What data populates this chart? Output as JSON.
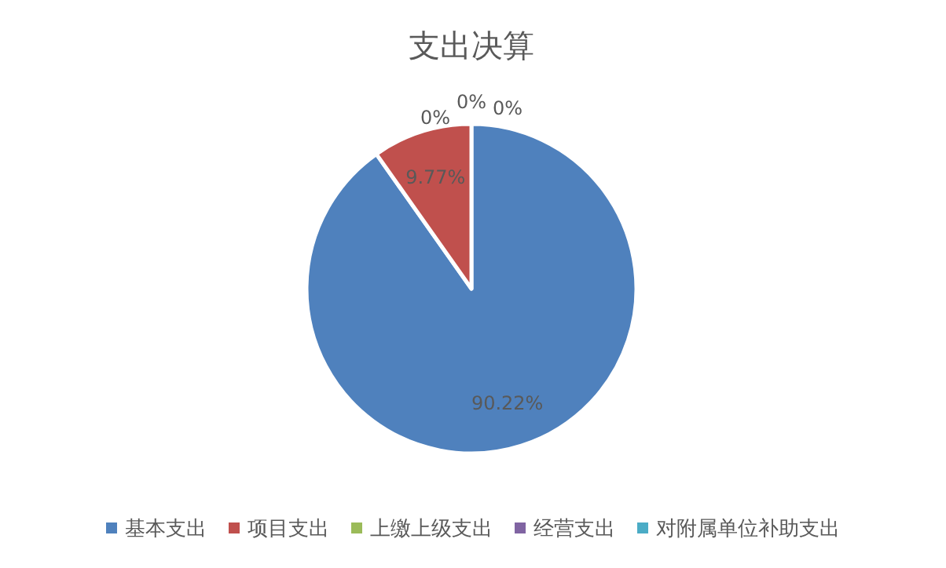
{
  "chart_data": {
    "type": "pie",
    "title": "支出决算",
    "categories": [
      "基本支出",
      "项目支出",
      "上缴上级支出",
      "经营支出",
      "对附属单位补助支出"
    ],
    "values": [
      90.22,
      9.77,
      0,
      0,
      0
    ],
    "colors": [
      "#4f81bd",
      "#c0504d",
      "#9bbb59",
      "#8064a2",
      "#4bacc6"
    ],
    "value_labels": [
      "90.22%",
      "9.77%",
      "0%",
      "0%",
      "0%"
    ],
    "legend": "bottom"
  }
}
